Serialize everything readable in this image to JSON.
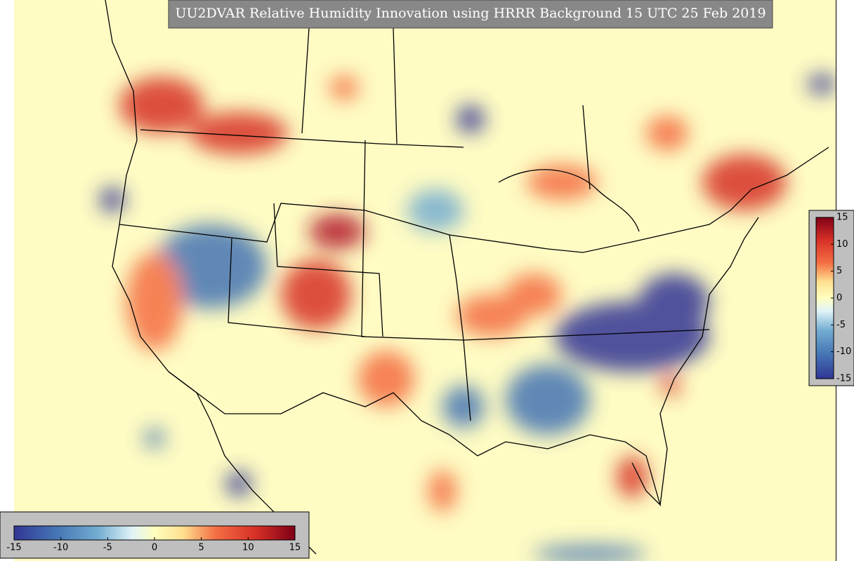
{
  "title": "UU2DVAR Relative Humidity Innovation using HRRR Background 15 UTC 25 Feb 2019",
  "colorbars": [
    {
      "location": "lower left",
      "orientation": "horizontal",
      "range": [
        -15,
        15
      ],
      "ticks": [
        -15,
        -10,
        -5,
        0,
        5,
        10,
        15
      ]
    },
    {
      "location": "right",
      "orientation": "vertical",
      "range": [
        -15,
        15
      ],
      "ticks": [
        -15,
        -10,
        -5,
        0,
        5,
        10,
        15
      ]
    }
  ]
}
